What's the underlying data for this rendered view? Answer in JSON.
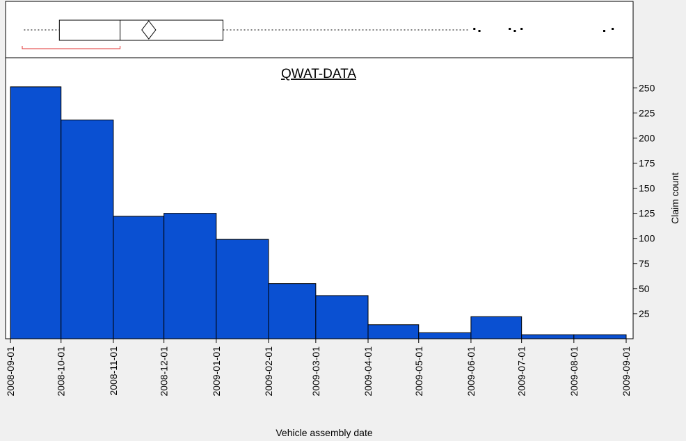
{
  "chart_data": {
    "type": "histogram",
    "title": "QWAT-DATA",
    "x_label": "Vehicle assembly date",
    "y_label": "Claim count",
    "bins": [
      "2008-09-01",
      "2008-10-01",
      "2008-11-01",
      "2008-12-01",
      "2009-01-01",
      "2009-02-01",
      "2009-03-01",
      "2009-04-01",
      "2009-05-01",
      "2009-06-01",
      "2009-07-01",
      "2009-08-01",
      "2009-09-01"
    ],
    "values": [
      251,
      218,
      122,
      125,
      99,
      55,
      43,
      14,
      6,
      22,
      4,
      4
    ],
    "color": "#0a50d2",
    "xlim": [
      "2008-09-01",
      "2009-09-01"
    ],
    "xticks": [
      "2008-09-01",
      "2008-10-01",
      "2008-11-01",
      "2008-12-01",
      "2009-01-01",
      "2009-02-01",
      "2009-03-01",
      "2009-04-01",
      "2009-05-01",
      "2009-06-01",
      "2009-07-01",
      "2009-08-01",
      "2009-09-01"
    ],
    "ylim": [
      0,
      280
    ],
    "yticks": [
      25,
      50,
      75,
      100,
      125,
      150,
      175,
      200,
      225,
      250
    ],
    "boxplot": {
      "whisker_low": "2008-09-09",
      "q1": "2008-09-30",
      "median": "2008-11-05",
      "mean": "2008-11-22",
      "q3": "2009-01-05",
      "whisker_high": "2009-05-31",
      "shortest_half": [
        "2008-09-08",
        "2008-11-05"
      ],
      "outliers": [
        "2009-06-03",
        "2009-06-06",
        "2009-06-24",
        "2009-06-27",
        "2009-07-01",
        "2009-08-19",
        "2009-08-24"
      ]
    }
  }
}
